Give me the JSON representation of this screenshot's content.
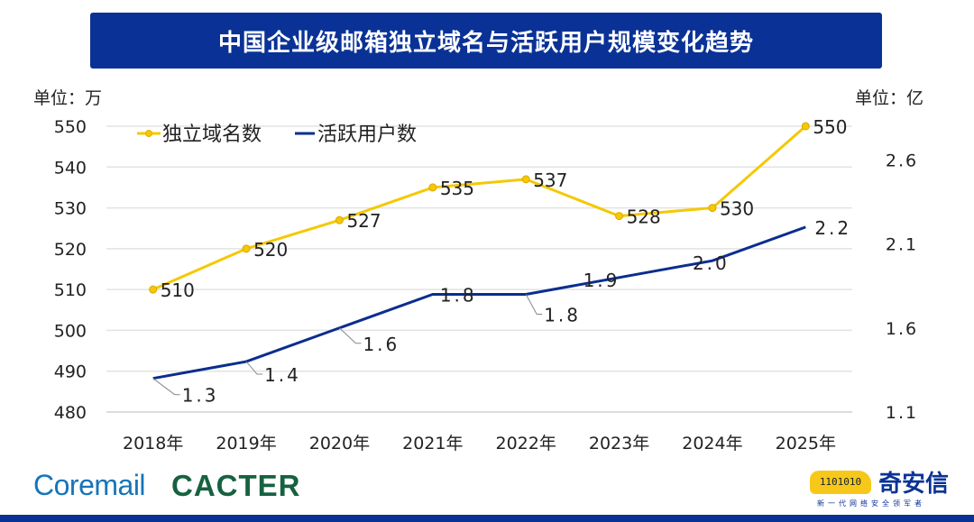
{
  "title": "中国企业级邮箱独立域名与活跃用户规模变化趋势",
  "units": {
    "left": "单位：万",
    "right": "单位：亿"
  },
  "chart_data": {
    "type": "line",
    "title": "中国企业级邮箱独立域名与活跃用户规模变化趋势",
    "categories": [
      "2018年",
      "2019年",
      "2020年",
      "2021年",
      "2022年",
      "2023年",
      "2024年",
      "2025年"
    ],
    "y_left": {
      "unit": "万",
      "range": [
        480,
        550
      ],
      "ticks": [
        480,
        490,
        500,
        510,
        520,
        530,
        540,
        550
      ]
    },
    "y_right": {
      "unit": "亿",
      "range": [
        1.1,
        2.8
      ],
      "ticks": [
        1.1,
        1.6,
        2.1,
        2.6
      ]
    },
    "grid": true,
    "legend_position": "top-left",
    "series": [
      {
        "name": "独立域名数",
        "axis": "left",
        "color": "#f5c800",
        "values": [
          510,
          520,
          527,
          535,
          537,
          528,
          530,
          550
        ],
        "labels": [
          "510",
          "520",
          "527",
          "535",
          "537",
          "528",
          "530",
          "550"
        ]
      },
      {
        "name": "活跃用户数",
        "axis": "right",
        "color": "#0a2d8f",
        "values": [
          1.3,
          1.4,
          1.6,
          1.8,
          1.8,
          1.9,
          2.0,
          2.2
        ],
        "labels": [
          "1.3",
          "1.4",
          "1.6",
          "1.8",
          "1.8",
          "1.9",
          "2.0",
          "2.2"
        ]
      }
    ]
  },
  "logos": {
    "coremail": "Coremail",
    "cacter": "CACTER",
    "qax_name": "奇安信",
    "qax_slogan": "新一代网络安全领军者",
    "qax_binary": "1101010"
  },
  "colors": {
    "title_bg": "#0a3296",
    "yellow": "#f5c800",
    "blue": "#0a2d8f"
  }
}
